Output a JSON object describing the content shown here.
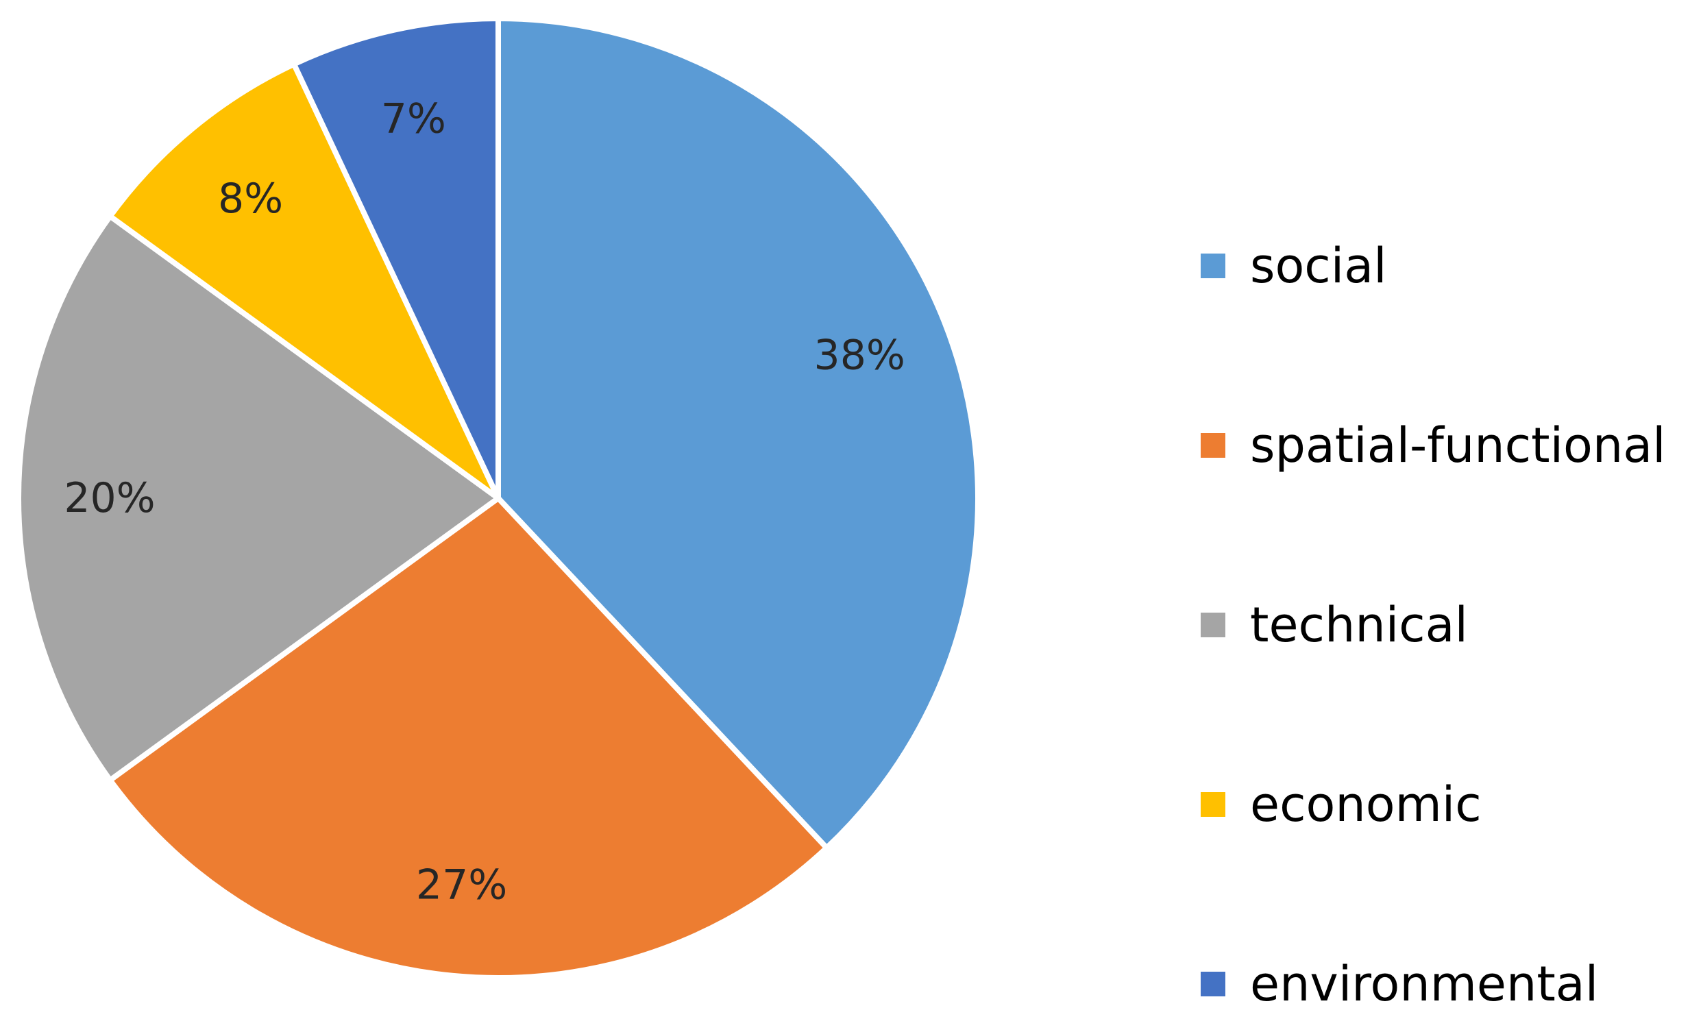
{
  "chart_data": {
    "type": "pie",
    "title": "",
    "legend_position": "right",
    "slices": [
      {
        "name": "social",
        "value": 38,
        "label": "38%",
        "color": "#5B9BD5"
      },
      {
        "name": "spatial-functional",
        "value": 27,
        "label": "27%",
        "color": "#ED7D31"
      },
      {
        "name": "technical",
        "value": 20,
        "label": "20%",
        "color": "#A5A5A5"
      },
      {
        "name": "economic",
        "value": 8,
        "label": "8%",
        "color": "#FFC000"
      },
      {
        "name": "environmental",
        "value": 7,
        "label": "7%",
        "color": "#4472C4"
      }
    ]
  }
}
